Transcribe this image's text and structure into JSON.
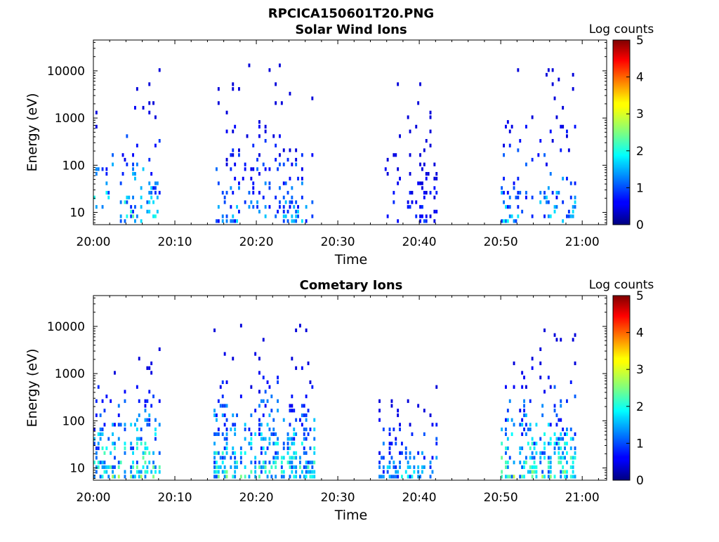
{
  "figure_title": "RPCICA150601T20.PNG",
  "chart_data": [
    {
      "type": "heatmap",
      "title": "Solar Wind Ions",
      "xlabel": "Time",
      "ylabel": "Energy (eV)",
      "x_ticks": [
        "20:00",
        "20:10",
        "20:20",
        "20:30",
        "20:40",
        "20:50",
        "21:00"
      ],
      "x_range_minutes": [
        0,
        63
      ],
      "y_scale": "log",
      "y_ticks": [
        "10",
        "100",
        "1000",
        "10000"
      ],
      "y_range": [
        5.5,
        45000
      ],
      "colorbar": {
        "label": "Log counts",
        "ticks": [
          "0",
          "1",
          "2",
          "3",
          "4",
          "5"
        ],
        "range": [
          0,
          5
        ],
        "colormap": "jet"
      },
      "regions": [
        {
          "t_start_minutes": 0,
          "t_end_minutes": 8,
          "e_min": 6,
          "e_max": 10000,
          "log_counts_max": 2.5
        },
        {
          "t_start_minutes": 14.5,
          "t_end_minutes": 27,
          "e_min": 6,
          "e_max": 14000,
          "log_counts_max": 1.8
        },
        {
          "t_start_minutes": 35,
          "t_end_minutes": 42,
          "e_min": 6,
          "e_max": 7000,
          "log_counts_max": 1.0
        },
        {
          "t_start_minutes": 50,
          "t_end_minutes": 59,
          "e_min": 6,
          "e_max": 10000,
          "log_counts_max": 2.0
        }
      ]
    },
    {
      "type": "heatmap",
      "title": "Cometary Ions",
      "xlabel": "Time",
      "ylabel": "Energy (eV)",
      "x_ticks": [
        "20:00",
        "20:10",
        "20:20",
        "20:30",
        "20:40",
        "20:50",
        "21:00"
      ],
      "x_range_minutes": [
        0,
        63
      ],
      "y_scale": "log",
      "y_ticks": [
        "10",
        "100",
        "1000",
        "10000"
      ],
      "y_range": [
        5.5,
        45000
      ],
      "colorbar": {
        "label": "Log counts",
        "ticks": [
          "0",
          "1",
          "2",
          "3",
          "4",
          "5"
        ],
        "range": [
          0,
          5
        ],
        "colormap": "jet"
      },
      "regions": [
        {
          "t_start_minutes": 0,
          "t_end_minutes": 8,
          "e_min": 6,
          "e_max": 5000,
          "log_counts_max": 2.8
        },
        {
          "t_start_minutes": 14.5,
          "t_end_minutes": 27,
          "e_min": 6,
          "e_max": 11000,
          "log_counts_max": 2.6
        },
        {
          "t_start_minutes": 35,
          "t_end_minutes": 42,
          "e_min": 6,
          "e_max": 600,
          "log_counts_max": 2.0
        },
        {
          "t_start_minutes": 50,
          "t_end_minutes": 59,
          "e_min": 6,
          "e_max": 9000,
          "log_counts_max": 2.8
        }
      ]
    }
  ]
}
